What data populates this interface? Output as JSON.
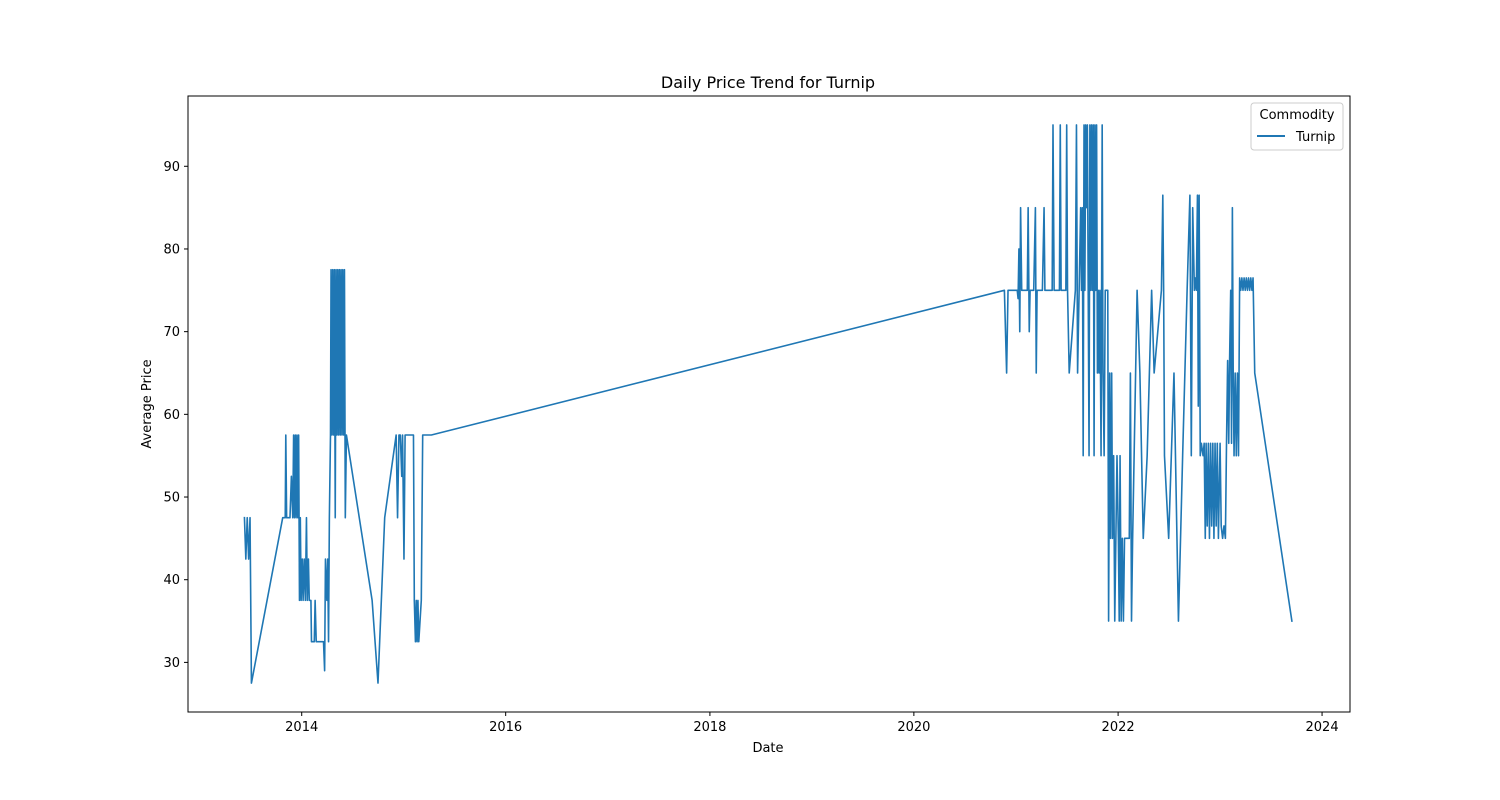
{
  "chart_data": {
    "type": "line",
    "title": "Daily Price Trend for Turnip",
    "xlabel": "Date",
    "ylabel": "Average Price",
    "xlim": [
      "2012-11-20",
      "2024-04-10"
    ],
    "ylim": [
      24,
      98.5
    ],
    "x_ticks": [
      "2014",
      "2016",
      "2018",
      "2020",
      "2022",
      "2024"
    ],
    "y_ticks": [
      30,
      40,
      50,
      60,
      70,
      80,
      90
    ],
    "grid": false,
    "legend": {
      "title": "Commodity",
      "position": "top-right",
      "entries": [
        "Turnip"
      ]
    },
    "series": [
      {
        "name": "Turnip",
        "color": "#1f77b4",
        "points": [
          [
            "2013-06-10",
            47.5
          ],
          [
            "2013-06-15",
            42.5
          ],
          [
            "2013-06-20",
            47.5
          ],
          [
            "2013-06-25",
            42.5
          ],
          [
            "2013-06-30",
            47.5
          ],
          [
            "2013-07-05",
            27.5
          ],
          [
            "2013-10-25",
            47.5
          ],
          [
            "2013-11-03",
            47.5
          ],
          [
            "2013-11-05",
            57.5
          ],
          [
            "2013-11-08",
            47.5
          ],
          [
            "2013-11-20",
            47.5
          ],
          [
            "2013-11-25",
            52.5
          ],
          [
            "2013-11-30",
            47.5
          ],
          [
            "2013-12-03",
            57.5
          ],
          [
            "2013-12-06",
            47.5
          ],
          [
            "2013-12-09",
            57.5
          ],
          [
            "2013-12-12",
            47.5
          ],
          [
            "2013-12-15",
            57.5
          ],
          [
            "2013-12-18",
            47.5
          ],
          [
            "2013-12-21",
            57.5
          ],
          [
            "2013-12-24",
            37.5
          ],
          [
            "2013-12-27",
            47.5
          ],
          [
            "2013-12-30",
            37.5
          ],
          [
            "2014-01-03",
            42.5
          ],
          [
            "2014-01-06",
            37.5
          ],
          [
            "2014-01-10",
            42.5
          ],
          [
            "2014-01-14",
            37.5
          ],
          [
            "2014-01-18",
            47.5
          ],
          [
            "2014-01-21",
            37.5
          ],
          [
            "2014-01-25",
            42.5
          ],
          [
            "2014-01-28",
            37.5
          ],
          [
            "2014-02-03",
            37.5
          ],
          [
            "2014-02-05",
            32.5
          ],
          [
            "2014-02-15",
            32.5
          ],
          [
            "2014-02-18",
            37.5
          ],
          [
            "2014-02-22",
            32.5
          ],
          [
            "2014-03-20",
            32.5
          ],
          [
            "2014-03-24",
            29.0
          ],
          [
            "2014-03-27",
            42.5
          ],
          [
            "2014-04-01",
            37.5
          ],
          [
            "2014-04-04",
            42.5
          ],
          [
            "2014-04-07",
            32.5
          ],
          [
            "2014-04-10",
            47.5
          ],
          [
            "2014-04-14",
            57.5
          ],
          [
            "2014-04-16",
            77.5
          ],
          [
            "2014-04-19",
            57.5
          ],
          [
            "2014-04-22",
            77.5
          ],
          [
            "2014-04-25",
            57.5
          ],
          [
            "2014-04-28",
            77.5
          ],
          [
            "2014-05-01",
            47.5
          ],
          [
            "2014-05-04",
            77.5
          ],
          [
            "2014-05-07",
            57.5
          ],
          [
            "2014-05-10",
            77.5
          ],
          [
            "2014-05-13",
            57.5
          ],
          [
            "2014-05-16",
            77.5
          ],
          [
            "2014-05-19",
            57.5
          ],
          [
            "2014-05-22",
            77.5
          ],
          [
            "2014-05-25",
            57.5
          ],
          [
            "2014-05-28",
            77.5
          ],
          [
            "2014-05-31",
            57.5
          ],
          [
            "2014-06-03",
            77.5
          ],
          [
            "2014-06-06",
            47.5
          ],
          [
            "2014-06-10",
            57.5
          ],
          [
            "2014-09-10",
            37.5
          ],
          [
            "2014-10-01",
            27.5
          ],
          [
            "2014-10-25",
            47.5
          ],
          [
            "2014-12-05",
            57.5
          ],
          [
            "2014-12-10",
            47.5
          ],
          [
            "2014-12-15",
            57.5
          ],
          [
            "2014-12-20",
            57.5
          ],
          [
            "2014-12-25",
            52.5
          ],
          [
            "2014-12-28",
            57.5
          ],
          [
            "2015-01-02",
            42.5
          ],
          [
            "2015-01-06",
            57.5
          ],
          [
            "2015-02-05",
            57.5
          ],
          [
            "2015-02-08",
            37.5
          ],
          [
            "2015-02-12",
            32.5
          ],
          [
            "2015-02-15",
            37.5
          ],
          [
            "2015-02-18",
            32.5
          ],
          [
            "2015-02-21",
            37.5
          ],
          [
            "2015-02-24",
            32.5
          ],
          [
            "2015-03-05",
            37.5
          ],
          [
            "2015-03-10",
            57.5
          ],
          [
            "2015-04-10",
            57.5
          ],
          [
            "2020-11-20",
            75.0
          ],
          [
            "2020-11-28",
            65.0
          ],
          [
            "2020-12-03",
            75.0
          ],
          [
            "2021-01-05",
            75.0
          ],
          [
            "2021-01-08",
            74.0
          ],
          [
            "2021-01-11",
            80.0
          ],
          [
            "2021-01-14",
            70.0
          ],
          [
            "2021-01-17",
            85.0
          ],
          [
            "2021-01-21",
            75.0
          ],
          [
            "2021-02-10",
            75.0
          ],
          [
            "2021-02-13",
            85.0
          ],
          [
            "2021-02-17",
            70.0
          ],
          [
            "2021-02-20",
            75.0
          ],
          [
            "2021-03-05",
            75.0
          ],
          [
            "2021-03-08",
            80.0
          ],
          [
            "2021-03-11",
            85.0
          ],
          [
            "2021-03-14",
            65.0
          ],
          [
            "2021-03-17",
            75.0
          ],
          [
            "2021-04-05",
            75.0
          ],
          [
            "2021-04-08",
            80.0
          ],
          [
            "2021-04-11",
            85.0
          ],
          [
            "2021-04-14",
            75.0
          ],
          [
            "2021-05-10",
            75.0
          ],
          [
            "2021-05-13",
            95.0
          ],
          [
            "2021-05-17",
            75.0
          ],
          [
            "2021-06-05",
            75.0
          ],
          [
            "2021-06-08",
            95.0
          ],
          [
            "2021-06-11",
            75.0
          ],
          [
            "2021-06-28",
            75.0
          ],
          [
            "2021-07-01",
            95.0
          ],
          [
            "2021-07-04",
            75.0
          ],
          [
            "2021-07-10",
            65.0
          ],
          [
            "2021-08-01",
            75.0
          ],
          [
            "2021-08-05",
            95.0
          ],
          [
            "2021-08-09",
            65.0
          ],
          [
            "2021-08-20",
            85.0
          ],
          [
            "2021-08-23",
            75.0
          ],
          [
            "2021-08-26",
            85.0
          ],
          [
            "2021-08-29",
            55.0
          ],
          [
            "2021-09-01",
            95.0
          ],
          [
            "2021-09-04",
            75.0
          ],
          [
            "2021-09-07",
            95.0
          ],
          [
            "2021-09-10",
            85.0
          ],
          [
            "2021-09-13",
            95.0
          ],
          [
            "2021-09-16",
            75.0
          ],
          [
            "2021-09-19",
            55.0
          ],
          [
            "2021-09-22",
            95.0
          ],
          [
            "2021-09-25",
            75.0
          ],
          [
            "2021-09-28",
            95.0
          ],
          [
            "2021-10-01",
            75.0
          ],
          [
            "2021-10-04",
            95.0
          ],
          [
            "2021-10-07",
            55.0
          ],
          [
            "2021-10-10",
            95.0
          ],
          [
            "2021-10-13",
            75.0
          ],
          [
            "2021-10-16",
            95.0
          ],
          [
            "2021-10-19",
            65.0
          ],
          [
            "2021-10-22",
            75.0
          ],
          [
            "2021-10-25",
            65.0
          ],
          [
            "2021-10-28",
            75.0
          ],
          [
            "2021-11-01",
            55.0
          ],
          [
            "2021-11-05",
            95.0
          ],
          [
            "2021-11-08",
            65.0
          ],
          [
            "2021-11-12",
            55.0
          ],
          [
            "2021-11-16",
            75.0
          ],
          [
            "2021-11-25",
            75.0
          ],
          [
            "2021-11-28",
            35.0
          ],
          [
            "2021-12-02",
            65.0
          ],
          [
            "2021-12-05",
            45.0
          ],
          [
            "2021-12-09",
            65.0
          ],
          [
            "2021-12-12",
            45.0
          ],
          [
            "2021-12-16",
            55.0
          ],
          [
            "2021-12-20",
            35.0
          ],
          [
            "2021-12-24",
            45.0
          ],
          [
            "2021-12-28",
            55.0
          ],
          [
            "2022-01-02",
            45.0
          ],
          [
            "2022-01-05",
            35.0
          ],
          [
            "2022-01-08",
            55.0
          ],
          [
            "2022-01-12",
            35.0
          ],
          [
            "2022-01-16",
            45.0
          ],
          [
            "2022-01-20",
            35.0
          ],
          [
            "2022-01-24",
            45.0
          ],
          [
            "2022-02-10",
            45.0
          ],
          [
            "2022-02-14",
            65.0
          ],
          [
            "2022-02-18",
            35.0
          ],
          [
            "2022-02-22",
            45.0
          ],
          [
            "2022-03-10",
            75.0
          ],
          [
            "2022-03-20",
            65.0
          ],
          [
            "2022-04-01",
            45.0
          ],
          [
            "2022-04-15",
            55.0
          ],
          [
            "2022-05-01",
            75.0
          ],
          [
            "2022-05-10",
            65.0
          ],
          [
            "2022-06-05",
            75.0
          ],
          [
            "2022-06-10",
            86.5
          ],
          [
            "2022-06-13",
            75.0
          ],
          [
            "2022-06-16",
            55.0
          ],
          [
            "2022-07-01",
            45.0
          ],
          [
            "2022-07-20",
            65.0
          ],
          [
            "2022-08-05",
            35.0
          ],
          [
            "2022-08-20",
            55.0
          ],
          [
            "2022-09-05",
            75.0
          ],
          [
            "2022-09-15",
            86.5
          ],
          [
            "2022-09-20",
            55.0
          ],
          [
            "2022-09-25",
            85.0
          ],
          [
            "2022-10-01",
            75.0
          ],
          [
            "2022-10-04",
            76.5
          ],
          [
            "2022-10-08",
            75.0
          ],
          [
            "2022-10-12",
            86.5
          ],
          [
            "2022-10-15",
            61.0
          ],
          [
            "2022-10-18",
            86.5
          ],
          [
            "2022-10-22",
            55.0
          ],
          [
            "2022-10-26",
            56.5
          ],
          [
            "2022-11-01",
            55.0
          ],
          [
            "2022-11-05",
            56.5
          ],
          [
            "2022-11-09",
            45.0
          ],
          [
            "2022-11-12",
            56.5
          ],
          [
            "2022-11-16",
            46.5
          ],
          [
            "2022-11-20",
            56.5
          ],
          [
            "2022-11-24",
            45.0
          ],
          [
            "2022-11-28",
            56.5
          ],
          [
            "2022-12-02",
            46.5
          ],
          [
            "2022-12-06",
            56.5
          ],
          [
            "2022-12-10",
            45.0
          ],
          [
            "2022-12-14",
            56.5
          ],
          [
            "2022-12-18",
            46.5
          ],
          [
            "2022-12-22",
            56.5
          ],
          [
            "2022-12-26",
            45.0
          ],
          [
            "2023-01-01",
            56.5
          ],
          [
            "2023-01-05",
            46.5
          ],
          [
            "2023-01-10",
            45.0
          ],
          [
            "2023-01-15",
            46.5
          ],
          [
            "2023-01-20",
            45.0
          ],
          [
            "2023-01-24",
            56.5
          ],
          [
            "2023-01-28",
            66.5
          ],
          [
            "2023-02-01",
            56.5
          ],
          [
            "2023-02-04",
            66.5
          ],
          [
            "2023-02-08",
            75.0
          ],
          [
            "2023-02-11",
            56.5
          ],
          [
            "2023-02-14",
            85.0
          ],
          [
            "2023-02-17",
            65.0
          ],
          [
            "2023-02-20",
            55.0
          ],
          [
            "2023-02-24",
            65.0
          ],
          [
            "2023-02-28",
            55.0
          ],
          [
            "2023-03-04",
            65.0
          ],
          [
            "2023-03-08",
            55.0
          ],
          [
            "2023-03-12",
            76.5
          ],
          [
            "2023-03-16",
            75.0
          ],
          [
            "2023-03-20",
            76.5
          ],
          [
            "2023-03-24",
            75.0
          ],
          [
            "2023-03-28",
            76.5
          ],
          [
            "2023-04-01",
            75.0
          ],
          [
            "2023-04-05",
            76.5
          ],
          [
            "2023-04-09",
            75.0
          ],
          [
            "2023-04-13",
            76.5
          ],
          [
            "2023-04-17",
            75.0
          ],
          [
            "2023-04-21",
            76.5
          ],
          [
            "2023-04-25",
            75.0
          ],
          [
            "2023-04-29",
            76.5
          ],
          [
            "2023-05-05",
            65.0
          ],
          [
            "2023-09-15",
            35.0
          ]
        ]
      }
    ]
  }
}
